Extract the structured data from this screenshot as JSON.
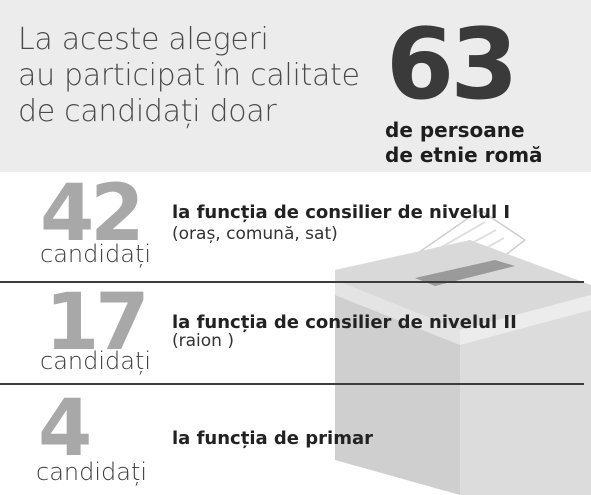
{
  "header": {
    "lines": [
      "La aceste alegeri",
      "au participat în calitate",
      "de candidați doar"
    ],
    "total": "63",
    "total_label_lines": [
      "de persoane",
      "de etnie romă"
    ]
  },
  "rows": [
    {
      "count": "42",
      "unit": "candidați",
      "title": "la funcția de consilier de nivelul I",
      "detail": "(oraș, comună, sat)"
    },
    {
      "count": "17",
      "unit": "candidați",
      "title": "la funcția de consilier de nivelul II",
      "detail": "(raion )"
    },
    {
      "count": "4",
      "unit": "candidați",
      "title": "la funcția de primar",
      "detail": ""
    }
  ],
  "illustration": {
    "icon": "ballot-box-icon"
  },
  "colors": {
    "header_bg": "#ececec",
    "number_gray": "#a8a8a8",
    "divider": "#3c3c3c"
  }
}
